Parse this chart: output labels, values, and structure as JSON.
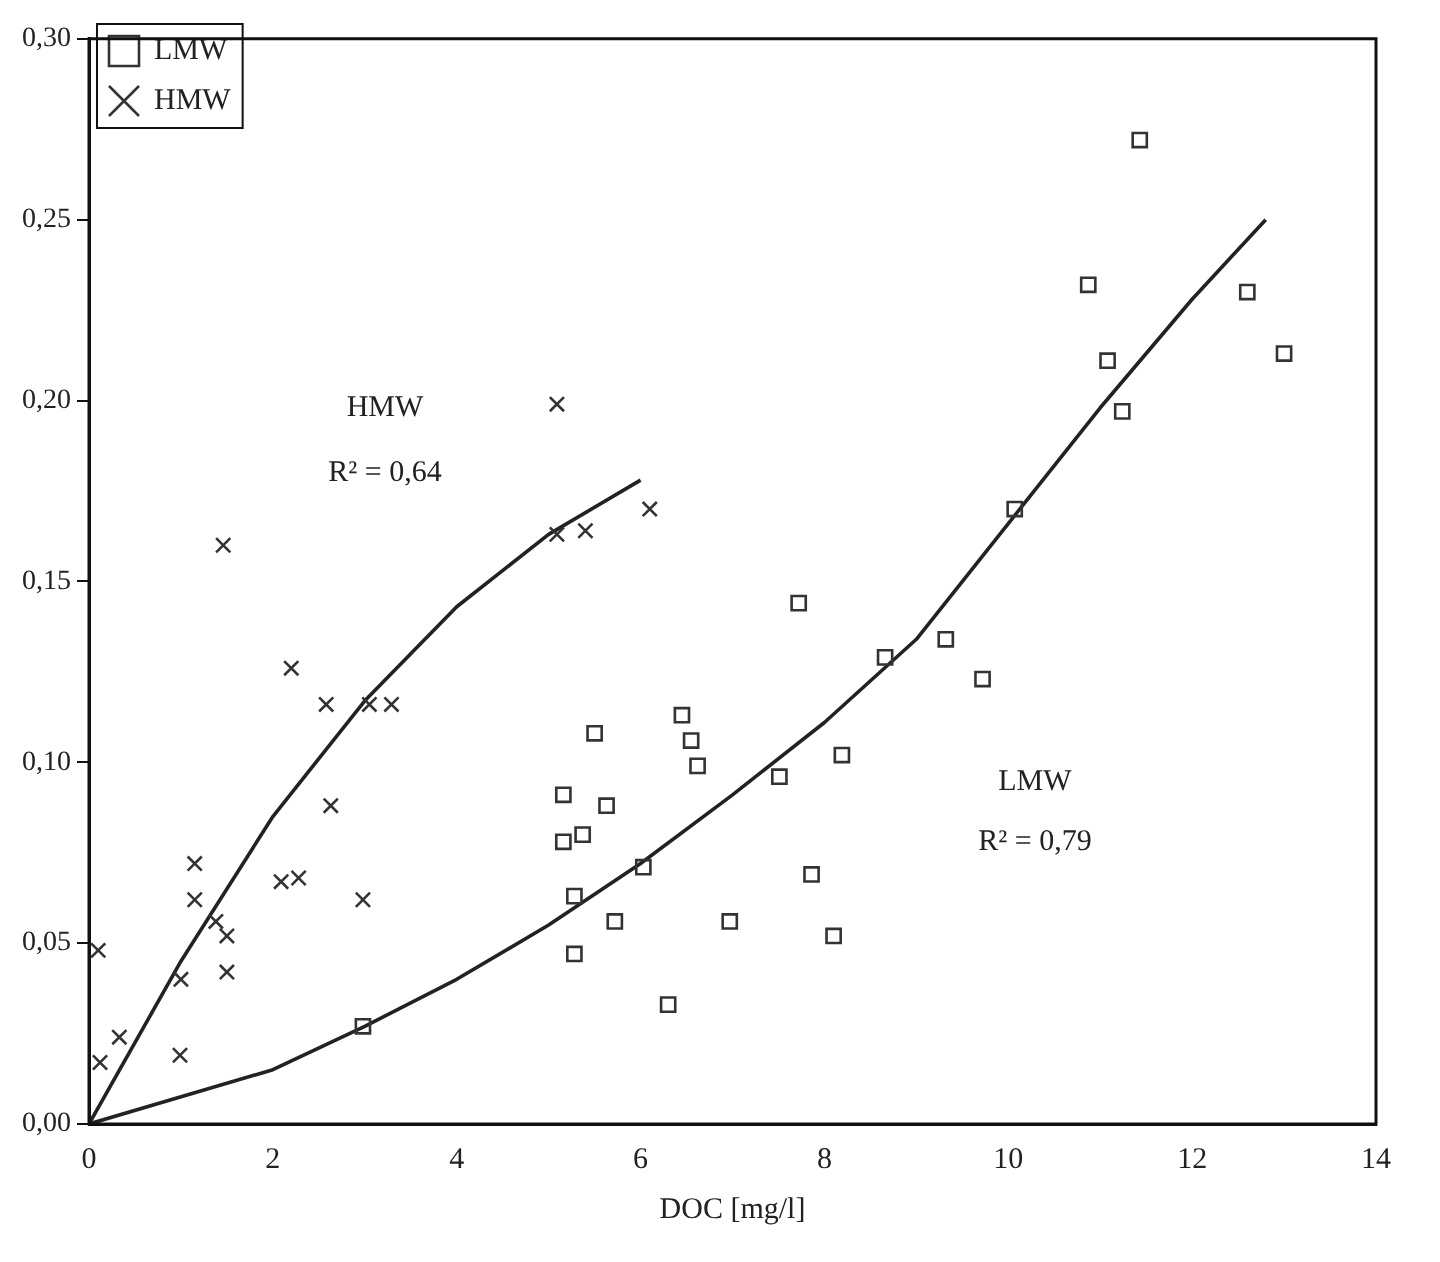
{
  "chart_data": {
    "type": "scatter",
    "xlabel": "DOC [mg/l]",
    "xlim": [
      0,
      14
    ],
    "xticks": [
      0,
      2,
      4,
      6,
      8,
      10,
      12,
      14
    ],
    "ylim": [
      0,
      0.3
    ],
    "yticks": [
      {
        "value": 0,
        "label": "0,00"
      },
      {
        "value": 0.05,
        "label": "0,05"
      },
      {
        "value": 0.1,
        "label": "0,10"
      },
      {
        "value": 0.15,
        "label": "0,15"
      },
      {
        "value": 0.2,
        "label": "0,20"
      },
      {
        "value": 0.25,
        "label": "0,25"
      },
      {
        "value": 0.3,
        "label": "0,30"
      }
    ],
    "grid": false,
    "legend": "top left",
    "series": [
      {
        "name": "LMW",
        "type": "scatter",
        "marker": "square",
        "color": "#333333",
        "x": [
          2.98,
          5.16,
          5.16,
          5.37,
          5.63,
          5.5,
          5.28,
          6.03,
          5.72,
          5.28,
          6.3,
          6.45,
          6.55,
          6.62,
          7.72,
          8.66,
          9.32,
          9.72,
          7.51,
          8.19,
          7.86,
          8.1,
          6.97,
          11.43,
          10.87,
          11.08,
          12.6,
          13.0,
          11.24,
          10.07
        ],
        "values": [
          0.027,
          0.091,
          0.078,
          0.08,
          0.088,
          0.108,
          0.063,
          0.071,
          0.056,
          0.047,
          0.033,
          0.113,
          0.106,
          0.099,
          0.144,
          0.129,
          0.134,
          0.123,
          0.096,
          0.102,
          0.069,
          0.052,
          0.056,
          0.272,
          0.232,
          0.211,
          0.23,
          0.213,
          0.197,
          0.17
        ]
      },
      {
        "name": "HMW",
        "type": "scatter",
        "marker": "cross",
        "color": "#333333",
        "x": [
          0.1,
          0.12,
          0.33,
          0.99,
          1.0,
          1.5,
          1.15,
          1.15,
          1.38,
          1.5,
          2.09,
          2.28,
          2.98,
          2.63,
          2.2,
          2.58,
          3.05,
          3.29,
          1.46,
          5.09,
          5.09,
          5.4,
          6.1
        ],
        "values": [
          0.048,
          0.017,
          0.024,
          0.019,
          0.04,
          0.042,
          0.072,
          0.062,
          0.056,
          0.052,
          0.067,
          0.068,
          0.062,
          0.088,
          0.126,
          0.116,
          0.116,
          0.116,
          0.16,
          0.199,
          0.163,
          0.164,
          0.17
        ]
      },
      {
        "type": "line",
        "marker": "none",
        "color": "#222222",
        "x": [
          0,
          1,
          2,
          3,
          4,
          5,
          6
        ],
        "values": [
          0,
          0.045,
          0.085,
          0.117,
          0.143,
          0.163,
          0.178
        ]
      },
      {
        "type": "line",
        "marker": "none",
        "color": "#222222",
        "x": [
          0,
          2,
          3,
          4,
          5,
          6,
          7,
          8,
          9,
          10,
          11,
          12,
          12.8
        ],
        "values": [
          0,
          0.015,
          0.027,
          0.04,
          0.055,
          0.072,
          0.091,
          0.111,
          0.134,
          0.166,
          0.198,
          0.228,
          0.25
        ]
      }
    ],
    "annotations": [
      "HMW",
      "R² = 0,64",
      "LMW",
      "R² = 0,79"
    ]
  }
}
